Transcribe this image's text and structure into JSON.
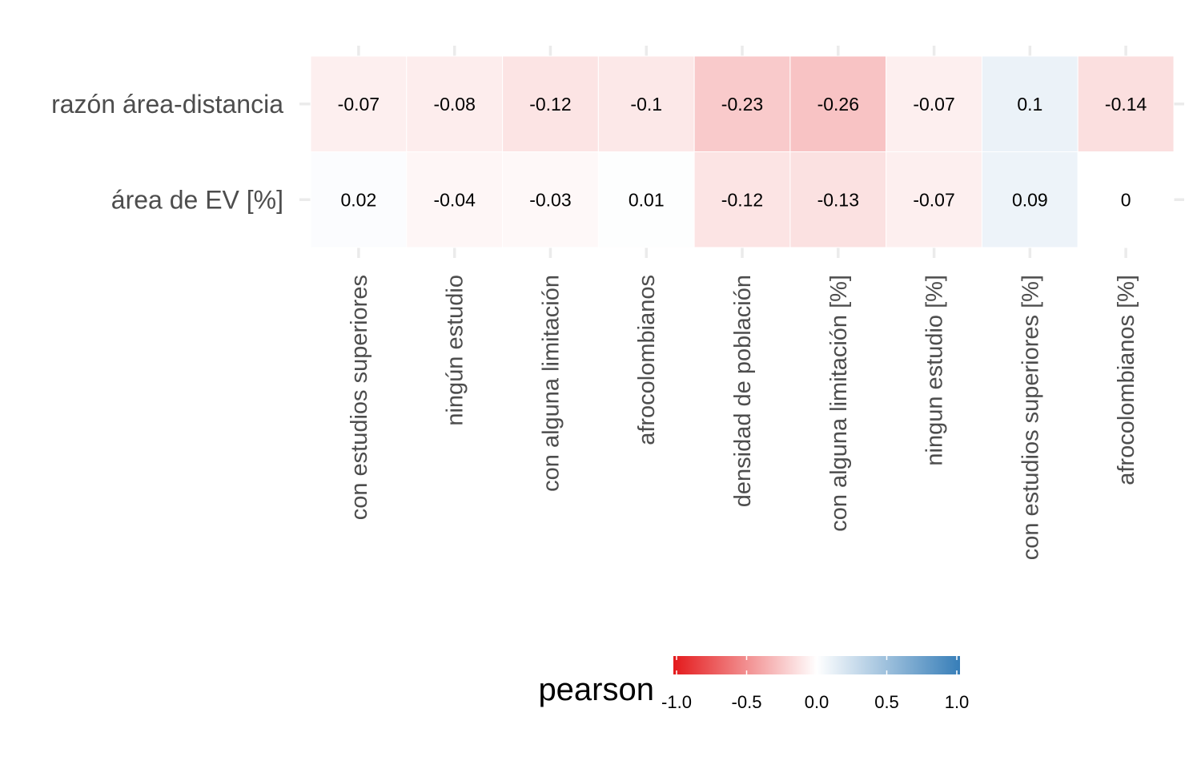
{
  "chart_data": {
    "type": "heatmap",
    "rows": [
      "razón área-distancia",
      "área de EV [%]"
    ],
    "columns": [
      "con estudios superiores",
      "ningún estudio",
      "con alguna limitación",
      "afrocolombianos",
      "densidad de población",
      "con alguna limitación [%]",
      "ningun estudio [%]",
      "con estudios superiores [%]",
      "afrocolombianos [%]"
    ],
    "values": [
      [
        -0.07,
        -0.08,
        -0.12,
        -0.1,
        -0.23,
        -0.26,
        -0.07,
        0.1,
        -0.14
      ],
      [
        0.02,
        -0.04,
        -0.03,
        0.01,
        -0.12,
        -0.13,
        -0.07,
        0.09,
        0
      ]
    ],
    "labels": [
      [
        "-0.07",
        "-0.08",
        "-0.12",
        "-0.1",
        "-0.23",
        "-0.26",
        "-0.07",
        "0.1",
        "-0.14"
      ],
      [
        "0.02",
        "-0.04",
        "-0.03",
        "0.01",
        "-0.12",
        "-0.13",
        "-0.07",
        "0.09",
        "0"
      ]
    ],
    "color_scale": {
      "low": "#e41a1c",
      "mid": "#ffffff",
      "high": "#377eb8",
      "limits": [
        -1,
        1
      ]
    },
    "legend": {
      "title": "pearson",
      "ticks": [
        -1.0,
        -0.5,
        0.0,
        0.5,
        1.0
      ],
      "tick_labels": [
        "-1.0",
        "-0.5",
        "0.0",
        "0.5",
        "1.0"
      ],
      "position": "bottom"
    },
    "grid": true
  }
}
